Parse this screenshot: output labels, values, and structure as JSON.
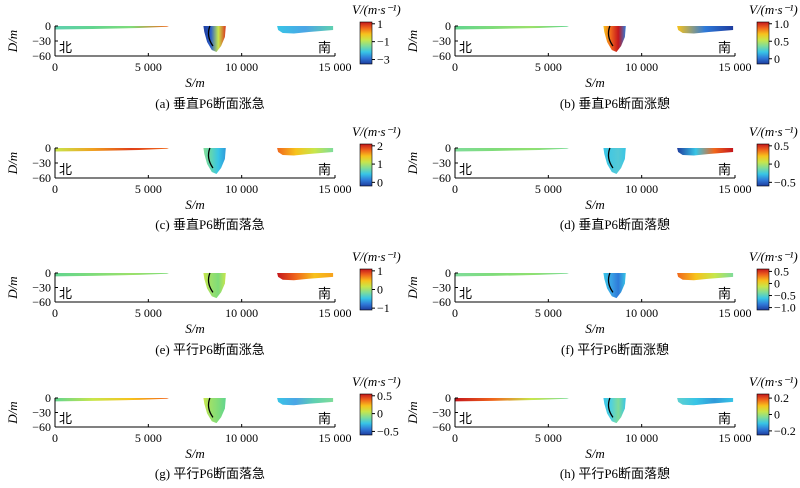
{
  "common": {
    "x_ticks": [
      "0",
      "5 000",
      "10 000",
      "15 000"
    ],
    "x_tick_values": [
      0,
      5000,
      10000,
      15000
    ],
    "y_ticks": [
      "0",
      "−30",
      "−60"
    ],
    "y_tick_values": [
      0,
      -30,
      -60
    ],
    "xlabel": "S/m",
    "ylabel": "D/m",
    "north_label": "北",
    "south_label": "南",
    "colorbar_title": "V/(m·s⁻¹)",
    "colormap": [
      "#1e3c9e",
      "#2f7ad9",
      "#38c5e6",
      "#7fdc9a",
      "#c8e64b",
      "#f7c21c",
      "#f0661c",
      "#c4161c"
    ]
  },
  "chart_data": [
    {
      "id": "a",
      "type": "heatmap",
      "caption": "(a) 垂直P6断面涨急",
      "xlim": [
        0,
        15000
      ],
      "ylim": [
        -60,
        0
      ],
      "colorbar_ticks": [
        "1",
        "−1",
        "−3"
      ],
      "colorbar_values": [
        1,
        -1,
        -3
      ],
      "vmin": -3.5,
      "vmax": 1.2
    },
    {
      "id": "b",
      "type": "heatmap",
      "caption": "(b) 垂直P6断面涨憩",
      "xlim": [
        0,
        15000
      ],
      "ylim": [
        -60,
        0
      ],
      "colorbar_ticks": [
        "1.0",
        "0.5",
        "0"
      ],
      "colorbar_values": [
        1.0,
        0.5,
        0
      ],
      "vmin": -0.15,
      "vmax": 1.05
    },
    {
      "id": "c",
      "type": "heatmap",
      "caption": "(c) 垂直P6断面落急",
      "xlim": [
        0,
        15000
      ],
      "ylim": [
        -60,
        0
      ],
      "colorbar_ticks": [
        "2",
        "1",
        "0"
      ],
      "colorbar_values": [
        2,
        1,
        0
      ],
      "vmin": -0.2,
      "vmax": 2.1
    },
    {
      "id": "d",
      "type": "heatmap",
      "caption": "(d) 垂直P6断面落憩",
      "xlim": [
        0,
        15000
      ],
      "ylim": [
        -60,
        0
      ],
      "colorbar_ticks": [
        "0.5",
        "0",
        "−0.5"
      ],
      "colorbar_values": [
        0.5,
        0,
        -0.5
      ],
      "vmin": -0.6,
      "vmax": 0.55
    },
    {
      "id": "e",
      "type": "heatmap",
      "caption": "(e) 平行P6断面涨急",
      "xlim": [
        0,
        15000
      ],
      "ylim": [
        -60,
        0
      ],
      "colorbar_ticks": [
        "1",
        "0",
        "−1"
      ],
      "colorbar_values": [
        1,
        0,
        -1
      ],
      "vmin": -1.1,
      "vmax": 1.1
    },
    {
      "id": "f",
      "type": "heatmap",
      "caption": "(f) 平行P6断面涨憩",
      "xlim": [
        0,
        15000
      ],
      "ylim": [
        -60,
        0
      ],
      "colorbar_ticks": [
        "0.5",
        "0",
        "−0.5",
        "−1.0"
      ],
      "colorbar_values": [
        0.5,
        0,
        -0.5,
        -1.0
      ],
      "vmin": -1.1,
      "vmax": 0.6
    },
    {
      "id": "g",
      "type": "heatmap",
      "caption": "(g) 平行P6断面落急",
      "xlim": [
        0,
        15000
      ],
      "ylim": [
        -60,
        0
      ],
      "colorbar_ticks": [
        "0.5",
        "0",
        "−0.5"
      ],
      "colorbar_values": [
        0.5,
        0,
        -0.5
      ],
      "vmin": -0.6,
      "vmax": 0.55
    },
    {
      "id": "h",
      "type": "heatmap",
      "caption": "(h) 平行P6断面落憩",
      "xlim": [
        0,
        15000
      ],
      "ylim": [
        -60,
        0
      ],
      "colorbar_ticks": [
        "0.2",
        "0",
        "−0.2"
      ],
      "colorbar_values": [
        0.2,
        0,
        -0.2
      ],
      "vmin": -0.25,
      "vmax": 0.25
    }
  ]
}
